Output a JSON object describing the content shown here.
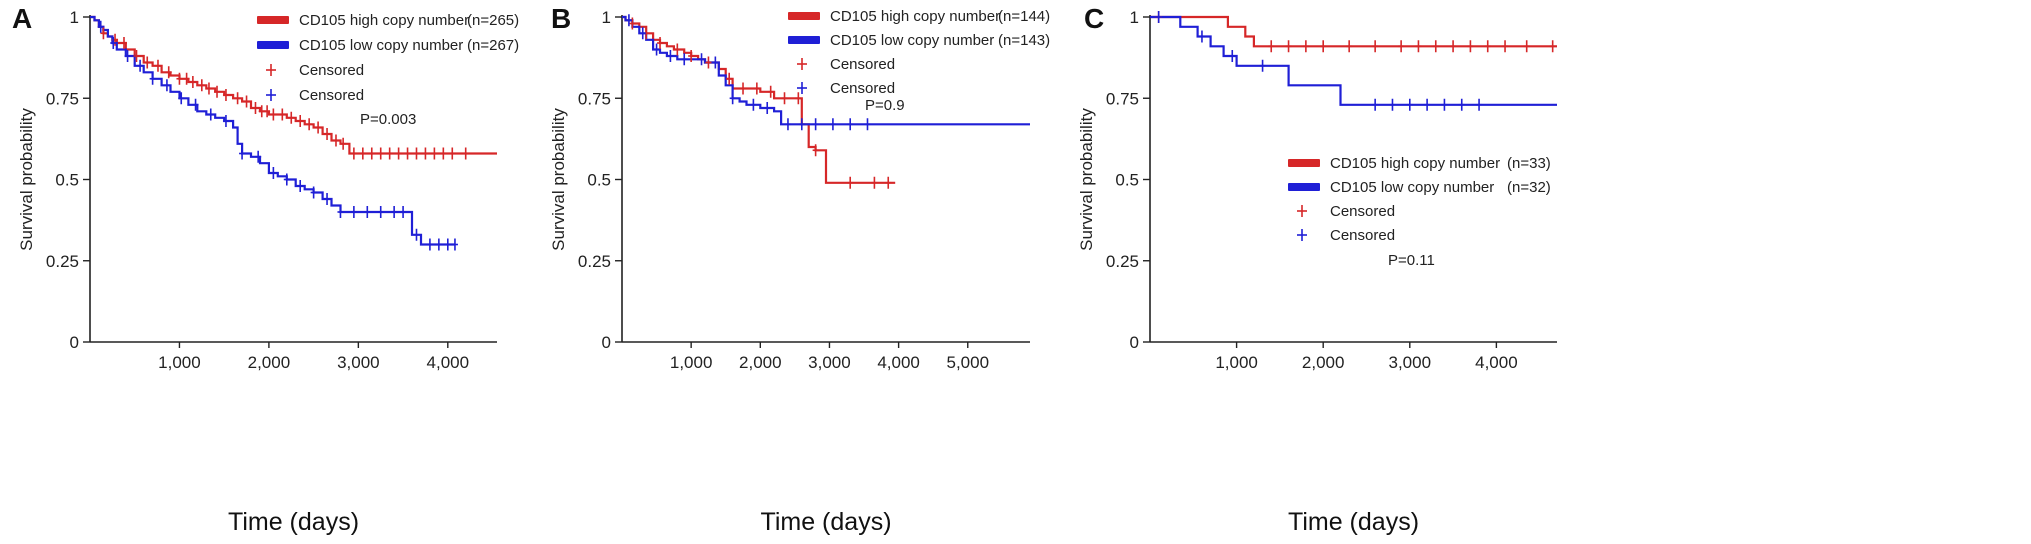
{
  "chart_data": [
    {
      "panel": "A",
      "type": "line",
      "xlabel": "Time (days)",
      "ylabel": "Survival probability",
      "xticks": [
        1000,
        2000,
        3000,
        4000
      ],
      "xtick_labels": [
        "1,000",
        "2,000",
        "3,000",
        "4,000"
      ],
      "yticks": [
        0,
        0.25,
        0.5,
        0.75,
        1
      ],
      "ytick_labels": [
        "0",
        "0.25",
        "0.5",
        "0.75",
        "1"
      ],
      "xlim": [
        0,
        4550
      ],
      "ylim": [
        0,
        1
      ],
      "pvalue": "P=0.003",
      "legend": [
        {
          "label": "CD105 high copy number",
          "n": "(n=265)",
          "style": "line",
          "color": "#d62728"
        },
        {
          "label": "CD105 low copy number",
          "n": "(n=267)",
          "style": "line",
          "color": "#1f1fd6"
        },
        {
          "label": "Censored",
          "n": "",
          "style": "plus",
          "color": "#d62728"
        },
        {
          "label": "Censored",
          "n": "",
          "style": "plus",
          "color": "#1f1fd6"
        }
      ],
      "series": [
        {
          "name": "CD105 high copy number",
          "color": "#d62728",
          "x": [
            0,
            50,
            100,
            150,
            200,
            250,
            300,
            400,
            500,
            600,
            700,
            800,
            900,
            1000,
            1100,
            1200,
            1300,
            1400,
            1500,
            1600,
            1700,
            1800,
            1900,
            2000,
            2100,
            2200,
            2300,
            2400,
            2500,
            2600,
            2700,
            2800,
            2900,
            3000,
            3500,
            4000,
            4550
          ],
          "y": [
            1,
            0.99,
            0.97,
            0.95,
            0.94,
            0.93,
            0.92,
            0.9,
            0.88,
            0.86,
            0.85,
            0.83,
            0.82,
            0.81,
            0.8,
            0.79,
            0.78,
            0.77,
            0.76,
            0.75,
            0.74,
            0.72,
            0.71,
            0.7,
            0.7,
            0.69,
            0.68,
            0.67,
            0.66,
            0.64,
            0.62,
            0.61,
            0.58,
            0.58,
            0.58,
            0.58,
            0.58
          ],
          "censored_x": [
            150,
            280,
            380,
            520,
            640,
            760,
            880,
            1000,
            1080,
            1150,
            1250,
            1330,
            1420,
            1520,
            1650,
            1750,
            1850,
            1920,
            1980,
            2050,
            2150,
            2250,
            2350,
            2450,
            2550,
            2650,
            2750,
            2830,
            2950,
            3050,
            3150,
            3250,
            3350,
            3450,
            3550,
            3650,
            3750,
            3850,
            3950,
            4050,
            4200
          ]
        },
        {
          "name": "CD105 low copy number",
          "color": "#1f1fd6",
          "x": [
            0,
            50,
            100,
            150,
            200,
            250,
            300,
            400,
            500,
            600,
            700,
            800,
            900,
            1000,
            1100,
            1200,
            1300,
            1400,
            1500,
            1600,
            1650,
            1700,
            1800,
            1900,
            2000,
            2100,
            2200,
            2300,
            2400,
            2500,
            2600,
            2700,
            2800,
            3000,
            3200,
            3400,
            3550,
            3600,
            3700,
            4080
          ],
          "y": [
            1,
            0.99,
            0.97,
            0.96,
            0.94,
            0.92,
            0.9,
            0.88,
            0.85,
            0.83,
            0.81,
            0.79,
            0.77,
            0.75,
            0.73,
            0.71,
            0.7,
            0.69,
            0.68,
            0.66,
            0.61,
            0.58,
            0.57,
            0.55,
            0.52,
            0.51,
            0.5,
            0.48,
            0.47,
            0.46,
            0.44,
            0.42,
            0.4,
            0.4,
            0.4,
            0.4,
            0.4,
            0.33,
            0.3,
            0.3
          ],
          "censored_x": [
            120,
            260,
            420,
            560,
            700,
            860,
            1020,
            1180,
            1350,
            1520,
            1700,
            1880,
            2050,
            2200,
            2350,
            2500,
            2650,
            2800,
            2950,
            3100,
            3250,
            3400,
            3500,
            3650,
            3800,
            3900,
            4000,
            4080
          ]
        }
      ]
    },
    {
      "panel": "B",
      "type": "line",
      "xlabel": "Time (days)",
      "ylabel": "Survival probability",
      "xticks": [
        1000,
        2000,
        3000,
        4000,
        5000
      ],
      "xtick_labels": [
        "1,000",
        "2,000",
        "3,000",
        "4,000",
        "5,000"
      ],
      "yticks": [
        0,
        0.25,
        0.5,
        0.75,
        1
      ],
      "ytick_labels": [
        "0",
        "0.25",
        "0.5",
        "0.75",
        "1"
      ],
      "xlim": [
        0,
        5900
      ],
      "ylim": [
        0,
        1
      ],
      "pvalue": "P=0.9",
      "legend": [
        {
          "label": "CD105 high copy number",
          "n": "(n=144)",
          "style": "line",
          "color": "#d62728"
        },
        {
          "label": "CD105 low copy number",
          "n": "(n=143)",
          "style": "line",
          "color": "#1f1fd6"
        },
        {
          "label": "Censored",
          "n": "",
          "style": "plus",
          "color": "#d62728"
        },
        {
          "label": "Censored",
          "n": "",
          "style": "plus",
          "color": "#1f1fd6"
        }
      ],
      "series": [
        {
          "name": "CD105 high copy number",
          "color": "#d62728",
          "x": [
            0,
            50,
            150,
            250,
            350,
            450,
            550,
            650,
            750,
            900,
            1000,
            1100,
            1200,
            1400,
            1500,
            1600,
            1800,
            2000,
            2200,
            2400,
            2600,
            2700,
            2800,
            2950,
            3950
          ],
          "y": [
            1,
            0.99,
            0.98,
            0.97,
            0.95,
            0.93,
            0.92,
            0.91,
            0.9,
            0.89,
            0.88,
            0.87,
            0.86,
            0.84,
            0.81,
            0.78,
            0.78,
            0.77,
            0.75,
            0.75,
            0.67,
            0.6,
            0.59,
            0.49,
            0.49
          ]
        },
        {
          "name": "CD105 low copy number",
          "color": "#1f1fd6",
          "x": [
            0,
            50,
            150,
            250,
            350,
            450,
            550,
            650,
            800,
            1000,
            1200,
            1400,
            1500,
            1600,
            1700,
            1800,
            2000,
            2200,
            2300,
            5900
          ],
          "y": [
            1,
            0.99,
            0.97,
            0.95,
            0.93,
            0.9,
            0.89,
            0.88,
            0.87,
            0.87,
            0.86,
            0.82,
            0.79,
            0.75,
            0.74,
            0.73,
            0.72,
            0.71,
            0.67,
            0.67
          ]
        }
      ],
      "censored": [
        {
          "color": "#d62728",
          "x": [
            150,
            350,
            550,
            800,
            1000,
            1250,
            1550,
            1750,
            1950,
            2150,
            2350,
            2550,
            2800,
            3300,
            3650,
            3850
          ]
        },
        {
          "color": "#1f1fd6",
          "x": [
            100,
            300,
            500,
            700,
            900,
            1150,
            1350,
            1600,
            1900,
            2100,
            2400,
            2600,
            2800,
            3050,
            3300,
            3550
          ]
        }
      ]
    },
    {
      "panel": "C",
      "type": "line",
      "xlabel": "Time (days)",
      "ylabel": "Survival probability",
      "xticks": [
        1000,
        2000,
        3000,
        4000
      ],
      "xtick_labels": [
        "1,000",
        "2,000",
        "3,000",
        "4,000"
      ],
      "yticks": [
        0,
        0.25,
        0.5,
        0.75,
        1
      ],
      "ytick_labels": [
        "0",
        "0.25",
        "0.5",
        "0.75",
        "1"
      ],
      "xlim": [
        0,
        4700
      ],
      "ylim": [
        0,
        1
      ],
      "pvalue": "P=0.11",
      "legend": [
        {
          "label": "CD105 high copy number",
          "n": "(n=33)",
          "style": "line",
          "color": "#d62728"
        },
        {
          "label": "CD105 low copy number",
          "n": "(n=32)",
          "style": "line",
          "color": "#1f1fd6"
        },
        {
          "label": "Censored",
          "n": "",
          "style": "plus",
          "color": "#d62728"
        },
        {
          "label": "Censored",
          "n": "",
          "style": "plus",
          "color": "#1f1fd6"
        }
      ],
      "series": [
        {
          "name": "CD105 high copy number",
          "color": "#d62728",
          "x": [
            0,
            750,
            900,
            1100,
            1200,
            4700
          ],
          "y": [
            1,
            1,
            0.97,
            0.94,
            0.91,
            0.91
          ]
        },
        {
          "name": "CD105 low copy number",
          "color": "#1f1fd6",
          "x": [
            0,
            200,
            350,
            550,
            700,
            850,
            1000,
            1550,
            1600,
            2150,
            2200,
            4700
          ],
          "y": [
            1,
            1,
            0.97,
            0.94,
            0.91,
            0.88,
            0.85,
            0.85,
            0.79,
            0.79,
            0.73,
            0.73
          ]
        }
      ],
      "censored": [
        {
          "color": "#d62728",
          "x": [
            100,
            1400,
            1600,
            1800,
            2000,
            2300,
            2600,
            2900,
            3100,
            3300,
            3500,
            3700,
            3900,
            4100,
            4350,
            4650
          ]
        },
        {
          "color": "#1f1fd6",
          "x": [
            100,
            600,
            950,
            1300,
            2600,
            2800,
            3000,
            3200,
            3400,
            3600,
            3800
          ]
        }
      ]
    }
  ]
}
